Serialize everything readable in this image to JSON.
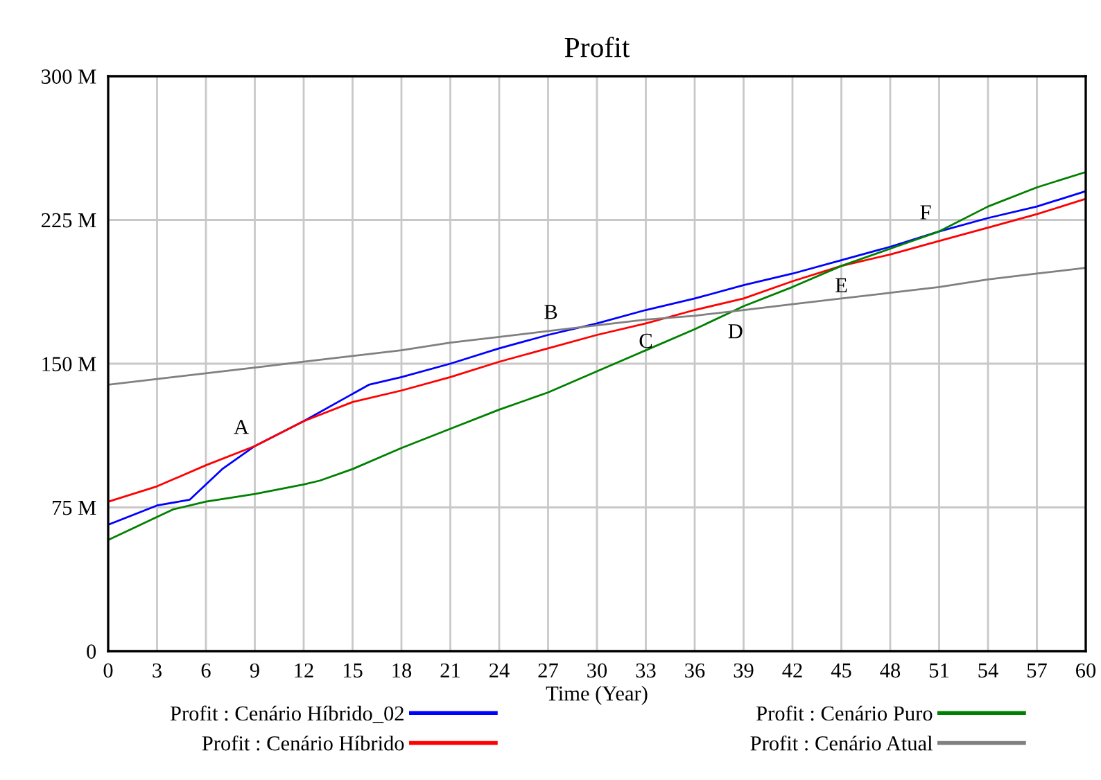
{
  "chart_data": {
    "type": "line",
    "title": "Profit",
    "xlabel": "Time (Year)",
    "x": [
      0,
      3,
      6,
      9,
      12,
      15,
      18,
      21,
      24,
      27,
      30,
      33,
      36,
      39,
      42,
      45,
      48,
      51,
      54,
      57,
      60
    ],
    "series": [
      {
        "name": "Profit : Cenário Híbrido_02",
        "color": "#0000ff",
        "x": [
          0,
          3,
          5,
          7,
          9,
          12,
          16,
          18,
          21,
          24,
          27,
          30,
          33,
          36,
          39,
          42,
          45,
          48,
          51,
          54,
          57,
          60
        ],
        "values": [
          66,
          76,
          79,
          95,
          107,
          120,
          139,
          143,
          150,
          158,
          165,
          171,
          178,
          184,
          191,
          197,
          204,
          211,
          219,
          226,
          232,
          240
        ]
      },
      {
        "name": "Profit : Cenário Híbrido",
        "color": "#ff0000",
        "values": [
          78,
          86,
          97,
          107,
          120,
          130,
          136,
          143,
          151,
          158,
          165,
          171,
          178,
          184,
          193,
          201,
          207,
          214,
          221,
          228,
          236
        ]
      },
      {
        "name": "Profit : Cenário Puro",
        "color": "#008000",
        "x": [
          0,
          3,
          4,
          6,
          9,
          12,
          13,
          15,
          18,
          21,
          24,
          27,
          30,
          33,
          36,
          39,
          42,
          45,
          48,
          51,
          54,
          57,
          60
        ],
        "values": [
          58,
          70,
          74,
          78,
          82,
          87,
          89,
          95,
          106,
          116,
          126,
          135,
          146,
          157,
          168,
          180,
          190,
          201,
          210,
          219,
          232,
          242,
          250
        ]
      },
      {
        "name": "Profit : Cenário Atual",
        "color": "#808080",
        "values": [
          139,
          142,
          145,
          148,
          151,
          154,
          157,
          161,
          164,
          167,
          170,
          173,
          175,
          178,
          181,
          184,
          187,
          190,
          194,
          197,
          200
        ]
      }
    ],
    "annotations": [
      {
        "text": "A",
        "x": 9,
        "y": 107
      },
      {
        "text": "B",
        "x": 28,
        "y": 167
      },
      {
        "text": "C",
        "x": 33,
        "y": 172
      },
      {
        "text": "D",
        "x": 38.5,
        "y": 177
      },
      {
        "text": "E",
        "x": 45,
        "y": 201
      },
      {
        "text": "F",
        "x": 51,
        "y": 219
      }
    ],
    "xlim": [
      0,
      60
    ],
    "xticks": [
      0,
      3,
      6,
      9,
      12,
      15,
      18,
      21,
      24,
      27,
      30,
      33,
      36,
      39,
      42,
      45,
      48,
      51,
      54,
      57,
      60
    ],
    "ylim": [
      0,
      300
    ],
    "yticks": [
      0,
      {
        "value": 75,
        "label": "75 M"
      },
      {
        "value": 150,
        "label": "150 M"
      },
      {
        "value": 225,
        "label": "225 M"
      },
      {
        "value": 300,
        "label": "300 M"
      }
    ],
    "grid": true,
    "legend": "bottom",
    "line_style": "solid",
    "marker": "none"
  }
}
